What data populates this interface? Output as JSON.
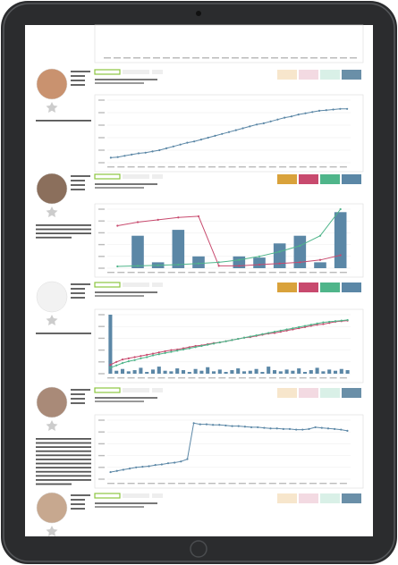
{
  "chart_data": [
    {
      "type": "line",
      "ylim": [
        0,
        100
      ],
      "yticks": [
        0,
        20,
        40,
        60,
        80,
        100
      ],
      "grid": true,
      "series": [
        {
          "color": "#5b87a6",
          "values": [
            8,
            9,
            11,
            13,
            15,
            16,
            18,
            20,
            23,
            26,
            29,
            32,
            34,
            37,
            40,
            43,
            46,
            49,
            52,
            55,
            58,
            61,
            63,
            66,
            69,
            72,
            74,
            77,
            79,
            81,
            83,
            84,
            85,
            86,
            86
          ]
        }
      ]
    },
    {
      "type": "bar_line",
      "ylim": [
        0,
        100
      ],
      "yticks": [
        0,
        20,
        40,
        60,
        80,
        100
      ],
      "y2lim": [
        0,
        100
      ],
      "grid": true,
      "series": [
        {
          "color": "#5b87a6",
          "values": [
            0,
            55,
            10,
            65,
            20,
            0,
            20,
            18,
            42,
            55,
            10,
            95
          ]
        },
        {
          "color": "#c84a6e",
          "axis": "y2",
          "values": [
            72,
            78,
            82,
            86,
            88,
            4,
            4,
            6,
            8,
            10,
            14,
            22
          ]
        },
        {
          "color": "#4fb58a",
          "axis": "y2",
          "values": [
            3,
            4,
            5,
            6,
            8,
            10,
            14,
            20,
            28,
            38,
            55,
            100
          ]
        }
      ]
    },
    {
      "type": "bar_line",
      "ylim": [
        0,
        100
      ],
      "yticks": [
        0,
        20,
        40,
        60,
        80,
        100
      ],
      "y2lim": [
        0,
        100
      ],
      "grid": true,
      "series": [
        {
          "color": "#5b87a6",
          "values": [
            100,
            5,
            8,
            4,
            6,
            10,
            3,
            7,
            12,
            5,
            4,
            9,
            6,
            3,
            8,
            5,
            11,
            4,
            7,
            3,
            6,
            9,
            4,
            5,
            8,
            3,
            12,
            6,
            4,
            7,
            5,
            9,
            3,
            6,
            10,
            4,
            7,
            5,
            8,
            6
          ]
        },
        {
          "color": "#c84a6e",
          "axis": "y2",
          "values": [
            15,
            20,
            24,
            26,
            28,
            30,
            32,
            34,
            36,
            38,
            40,
            41,
            43,
            45,
            47,
            48,
            50,
            52,
            53,
            55,
            57,
            59,
            61,
            62,
            64,
            66,
            68,
            69,
            71,
            73,
            75,
            77,
            79,
            81,
            83,
            84,
            86,
            88,
            89,
            90
          ]
        },
        {
          "color": "#4fb58a",
          "axis": "y2",
          "values": [
            10,
            14,
            18,
            21,
            23,
            26,
            28,
            31,
            33,
            35,
            37,
            39,
            41,
            43,
            45,
            47,
            49,
            51,
            53,
            55,
            57,
            59,
            61,
            63,
            65,
            67,
            69,
            71,
            73,
            75,
            77,
            79,
            81,
            83,
            85,
            87,
            88,
            89,
            90,
            91
          ]
        }
      ]
    },
    {
      "type": "line",
      "ylim": [
        0,
        100
      ],
      "yticks": [
        0,
        20,
        40,
        60,
        80,
        100
      ],
      "grid": true,
      "series": [
        {
          "color": "#5b87a6",
          "values": [
            12,
            14,
            16,
            18,
            20,
            21,
            22,
            24,
            25,
            27,
            28,
            30,
            34,
            95,
            93,
            93,
            92,
            92,
            91,
            90,
            90,
            89,
            88,
            88,
            87,
            86,
            86,
            85,
            85,
            84,
            84,
            85,
            88,
            87,
            86,
            85,
            84,
            82
          ]
        }
      ]
    }
  ]
}
